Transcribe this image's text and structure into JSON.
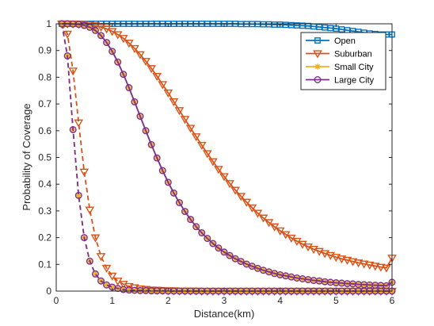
{
  "chart_data": {
    "type": "line",
    "xlabel": "Distance(km)",
    "ylabel": "Probability of Coverage",
    "xlim": [
      0,
      6
    ],
    "ylim": [
      0,
      1
    ],
    "xticks": [
      0,
      1,
      2,
      3,
      4,
      5,
      6
    ],
    "yticks": [
      0,
      0.1,
      0.2,
      0.3,
      0.4,
      0.5,
      0.6,
      0.7,
      0.8,
      0.9,
      1
    ],
    "legend_position": "top-right",
    "legend": [
      "Open",
      "Suburban",
      "Small City",
      "Large City"
    ],
    "curves": {
      "x": [
        0.1,
        0.2,
        0.3,
        0.4,
        0.5,
        0.6,
        0.7,
        0.8,
        0.9,
        1.0,
        1.1,
        1.2,
        1.3,
        1.4,
        1.5,
        1.6,
        1.7,
        1.8,
        1.9,
        2.0,
        2.1,
        2.2,
        2.3,
        2.4,
        2.5,
        2.6,
        2.7,
        2.8,
        2.9,
        3.0,
        3.1,
        3.2,
        3.3,
        3.4,
        3.5,
        3.6,
        3.7,
        3.8,
        3.9,
        4.0,
        4.1,
        4.2,
        4.3,
        4.4,
        4.5,
        4.6,
        4.7,
        4.8,
        4.9,
        5.0,
        5.1,
        5.2,
        5.3,
        5.4,
        5.5,
        5.6,
        5.7,
        5.8,
        5.9,
        6.0
      ],
      "solid_series": [
        {
          "name": "Open",
          "color": "#0072BD",
          "marker": "square",
          "values": [
            1.0,
            1.0,
            1.0,
            1.0,
            1.0,
            1.0,
            1.0,
            1.0,
            1.0,
            1.0,
            1.0,
            1.0,
            1.0,
            1.0,
            1.0,
            1.0,
            1.0,
            1.0,
            1.0,
            1.0,
            1.0,
            1.0,
            1.0,
            1.0,
            1.0,
            1.0,
            1.0,
            1.0,
            1.0,
            1.0,
            1.0,
            1.0,
            0.999,
            0.999,
            0.999,
            0.999,
            0.998,
            0.998,
            0.997,
            0.997,
            0.996,
            0.995,
            0.994,
            0.993,
            0.992,
            0.99,
            0.988,
            0.986,
            0.984,
            0.982,
            0.979,
            0.976,
            0.973,
            0.97,
            0.967,
            0.964,
            0.962,
            0.96,
            0.96,
            0.96
          ]
        },
        {
          "name": "Suburban",
          "color": "#D95319",
          "marker": "triangle-down",
          "values": [
            1.0,
            1.0,
            1.0,
            0.999,
            0.998,
            0.996,
            0.993,
            0.988,
            0.981,
            0.972,
            0.96,
            0.946,
            0.928,
            0.908,
            0.885,
            0.86,
            0.833,
            0.804,
            0.773,
            0.742,
            0.709,
            0.676,
            0.643,
            0.61,
            0.578,
            0.546,
            0.515,
            0.485,
            0.456,
            0.429,
            0.403,
            0.378,
            0.355,
            0.333,
            0.312,
            0.292,
            0.274,
            0.257,
            0.241,
            0.226,
            0.212,
            0.199,
            0.187,
            0.176,
            0.166,
            0.157,
            0.149,
            0.141,
            0.134,
            0.127,
            0.121,
            0.116,
            0.111,
            0.106,
            0.102,
            0.098,
            0.094,
            0.09,
            0.087,
            0.124
          ]
        },
        {
          "name": "Small City",
          "color": "#EDB120",
          "marker": "asterisk",
          "values": [
            1.0,
            1.0,
            0.999,
            0.998,
            0.994,
            0.987,
            0.975,
            0.956,
            0.93,
            0.897,
            0.857,
            0.811,
            0.761,
            0.708,
            0.654,
            0.6,
            0.548,
            0.498,
            0.451,
            0.407,
            0.367,
            0.331,
            0.298,
            0.268,
            0.241,
            0.218,
            0.197,
            0.178,
            0.161,
            0.146,
            0.133,
            0.121,
            0.111,
            0.101,
            0.093,
            0.085,
            0.078,
            0.072,
            0.066,
            0.061,
            0.057,
            0.053,
            0.049,
            0.046,
            0.043,
            0.04,
            0.038,
            0.035,
            0.033,
            0.031,
            0.03,
            0.028,
            0.027,
            0.025,
            0.024,
            0.023,
            0.022,
            0.021,
            0.02,
            0.033
          ]
        },
        {
          "name": "Large City",
          "color": "#7E2F8E",
          "marker": "circle",
          "values": [
            1.0,
            1.0,
            0.999,
            0.998,
            0.994,
            0.987,
            0.975,
            0.956,
            0.93,
            0.897,
            0.857,
            0.811,
            0.761,
            0.708,
            0.654,
            0.6,
            0.548,
            0.498,
            0.451,
            0.407,
            0.367,
            0.331,
            0.298,
            0.268,
            0.241,
            0.218,
            0.197,
            0.178,
            0.161,
            0.146,
            0.133,
            0.121,
            0.111,
            0.101,
            0.093,
            0.085,
            0.078,
            0.072,
            0.066,
            0.061,
            0.057,
            0.053,
            0.049,
            0.046,
            0.043,
            0.04,
            0.038,
            0.035,
            0.033,
            0.031,
            0.03,
            0.028,
            0.027,
            0.025,
            0.024,
            0.023,
            0.022,
            0.021,
            0.02,
            0.033
          ]
        }
      ],
      "dashed_series": [
        {
          "color": "#D95319",
          "marker": "triangle-down",
          "values": [
            1.0,
            0.962,
            0.824,
            0.63,
            0.446,
            0.304,
            0.2,
            0.13,
            0.086,
            0.057,
            0.038,
            0.026,
            0.018,
            0.013,
            0.009,
            0.007,
            0.005,
            0.004,
            0.003,
            0.002,
            0.002,
            0.001,
            0.001,
            0.001,
            0.001,
            0.0,
            0.0,
            0.0,
            0.0,
            0.0,
            0.0,
            0.0,
            0.0,
            0.0,
            0.0,
            0.0,
            0.0,
            0.0,
            0.0,
            0.0,
            0.0,
            0.0,
            0.0,
            0.0,
            0.0,
            0.0,
            0.0,
            0.0,
            0.0,
            0.0,
            0.0,
            0.0,
            0.0,
            0.0,
            0.0,
            0.0,
            0.0,
            0.0,
            0.0,
            0.0
          ]
        },
        {
          "color": "#EDB120",
          "marker": "asterisk",
          "values": [
            1.0,
            0.88,
            0.604,
            0.358,
            0.2,
            0.112,
            0.064,
            0.038,
            0.023,
            0.015,
            0.01,
            0.006,
            0.004,
            0.003,
            0.002,
            0.002,
            0.001,
            0.001,
            0.001,
            0.0,
            0.0,
            0.0,
            0.0,
            0.0,
            0.0,
            0.0,
            0.0,
            0.0,
            0.0,
            0.0,
            0.0,
            0.0,
            0.0,
            0.0,
            0.0,
            0.0,
            0.0,
            0.0,
            0.0,
            0.0,
            0.0,
            0.0,
            0.0,
            0.0,
            0.0,
            0.0,
            0.0,
            0.0,
            0.0,
            0.0,
            0.0,
            0.0,
            0.0,
            0.0,
            0.0,
            0.0,
            0.0,
            0.0,
            0.0,
            0.0
          ]
        },
        {
          "color": "#7E2F8E",
          "marker": "circle",
          "values": [
            1.0,
            0.88,
            0.604,
            0.358,
            0.2,
            0.112,
            0.064,
            0.038,
            0.023,
            0.015,
            0.01,
            0.006,
            0.004,
            0.003,
            0.002,
            0.002,
            0.001,
            0.001,
            0.001,
            0.0,
            0.0,
            0.0,
            0.0,
            0.0,
            0.0,
            0.0,
            0.0,
            0.0,
            0.0,
            0.0,
            0.0,
            0.0,
            0.0,
            0.0,
            0.0,
            0.0,
            0.0,
            0.0,
            0.0,
            0.0,
            0.0,
            0.0,
            0.0,
            0.0,
            0.0,
            0.0,
            0.0,
            0.0,
            0.0,
            0.0,
            0.0,
            0.0,
            0.0,
            0.0,
            0.0,
            0.0,
            0.0,
            0.0,
            0.0,
            0.0
          ]
        }
      ]
    }
  }
}
